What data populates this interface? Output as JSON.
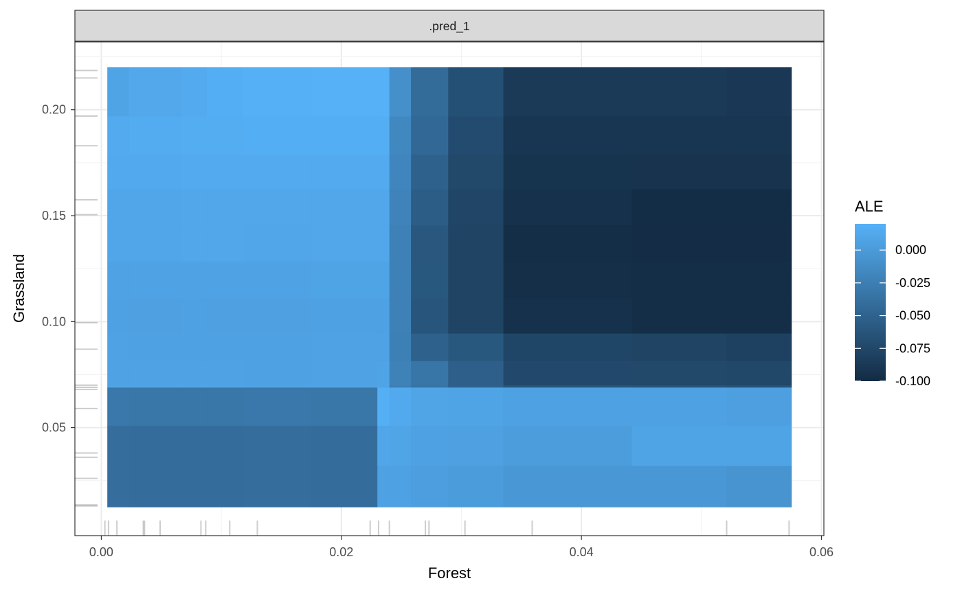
{
  "chart_data": {
    "type": "heatmap",
    "facet_label": ".pred_1",
    "xlabel": "Forest",
    "ylabel": "Grassland",
    "xlim": [
      -0.0022,
      0.0602
    ],
    "ylim": [
      -0.001,
      0.232
    ],
    "x_ticks": [
      {
        "value": 0.0,
        "label": "0.00"
      },
      {
        "value": 0.02,
        "label": "0.02"
      },
      {
        "value": 0.04,
        "label": "0.04"
      },
      {
        "value": 0.06,
        "label": "0.06"
      }
    ],
    "y_ticks": [
      {
        "value": 0.05,
        "label": "0.05"
      },
      {
        "value": 0.1,
        "label": "0.10"
      },
      {
        "value": 0.15,
        "label": "0.15"
      },
      {
        "value": 0.2,
        "label": "0.20"
      }
    ],
    "x_edges": [
      0.0005,
      0.0023,
      0.0067,
      0.0088,
      0.0118,
      0.0175,
      0.023,
      0.024,
      0.0258,
      0.0289,
      0.0335,
      0.0442,
      0.0521,
      0.0575
    ],
    "y_edges": [
      0.0125,
      0.032,
      0.051,
      0.069,
      0.07,
      0.0815,
      0.0945,
      0.111,
      0.1285,
      0.1455,
      0.1625,
      0.179,
      0.197,
      0.22
    ],
    "values": [
      [
        -0.04,
        -0.041,
        -0.041,
        -0.041,
        -0.04,
        -0.041,
        0.006,
        0.006,
        0.003,
        0.001,
        -0.003,
        -0.003,
        -0.006
      ],
      [
        -0.04,
        -0.041,
        -0.041,
        -0.041,
        -0.04,
        -0.041,
        0.01,
        0.009,
        0.006,
        0.005,
        0.002,
        0.008,
        0.008
      ],
      [
        -0.031,
        -0.032,
        -0.032,
        -0.032,
        -0.031,
        -0.032,
        0.018,
        0.013,
        0.009,
        0.008,
        0.006,
        0.006,
        0.004
      ],
      [
        0.008,
        0.008,
        0.008,
        0.008,
        0.008,
        0.008,
        0.008,
        -0.024,
        -0.035,
        -0.05,
        -0.06,
        -0.062,
        -0.063
      ],
      [
        0.007,
        0.007,
        0.007,
        0.007,
        0.006,
        0.007,
        0.008,
        -0.022,
        -0.033,
        -0.053,
        -0.073,
        -0.074,
        -0.075
      ],
      [
        0.007,
        0.006,
        0.006,
        0.006,
        0.006,
        0.007,
        0.007,
        -0.024,
        -0.052,
        -0.06,
        -0.076,
        -0.078,
        -0.08
      ],
      [
        0.006,
        0.005,
        0.006,
        0.005,
        0.005,
        0.006,
        0.006,
        -0.023,
        -0.062,
        -0.078,
        -0.095,
        -0.097,
        -0.097
      ],
      [
        0.007,
        0.007,
        0.007,
        0.007,
        0.007,
        0.008,
        0.008,
        -0.023,
        -0.06,
        -0.078,
        -0.096,
        -0.097,
        -0.097
      ],
      [
        0.01,
        0.01,
        0.011,
        0.011,
        0.01,
        0.011,
        0.011,
        -0.023,
        -0.061,
        -0.078,
        -0.097,
        -0.099,
        -0.099
      ],
      [
        0.01,
        0.01,
        0.011,
        0.011,
        0.011,
        0.011,
        0.011,
        -0.021,
        -0.055,
        -0.077,
        -0.095,
        -0.098,
        -0.098
      ],
      [
        0.013,
        0.013,
        0.014,
        0.014,
        0.014,
        0.014,
        0.014,
        -0.019,
        -0.052,
        -0.074,
        -0.092,
        -0.093,
        -0.093
      ],
      [
        0.014,
        0.015,
        0.016,
        0.016,
        0.017,
        0.017,
        0.017,
        -0.017,
        -0.045,
        -0.071,
        -0.091,
        -0.091,
        -0.091
      ],
      [
        0.008,
        0.012,
        0.014,
        0.017,
        0.019,
        0.021,
        0.021,
        -0.01,
        -0.043,
        -0.067,
        -0.087,
        -0.087,
        -0.088
      ]
    ],
    "rug_x": [
      0.0003,
      0.0006,
      0.0013,
      0.0035,
      0.0036,
      0.0049,
      0.0083,
      0.0087,
      0.0107,
      0.013,
      0.0224,
      0.0231,
      0.024,
      0.027,
      0.0273,
      0.0303,
      0.0359,
      0.0521,
      0.0573
    ],
    "rug_y": [
      0.013,
      0.0135,
      0.026,
      0.036,
      0.038,
      0.059,
      0.068,
      0.069,
      0.07,
      0.087,
      0.0995,
      0.1505,
      0.1575,
      0.183,
      0.197,
      0.215,
      0.2185
    ],
    "legend": {
      "title": "ALE",
      "placement": "right",
      "range": [
        -0.1,
        0.02
      ],
      "breaks": [
        {
          "value": 0.0,
          "label": "0.000"
        },
        {
          "value": -0.025,
          "label": "-0.025"
        },
        {
          "value": -0.05,
          "label": "-0.050"
        },
        {
          "value": -0.075,
          "label": "-0.075"
        },
        {
          "value": -0.1,
          "label": "-0.100"
        }
      ],
      "low_color": "#132B43",
      "high_color": "#56B1F7"
    },
    "grid": true
  }
}
